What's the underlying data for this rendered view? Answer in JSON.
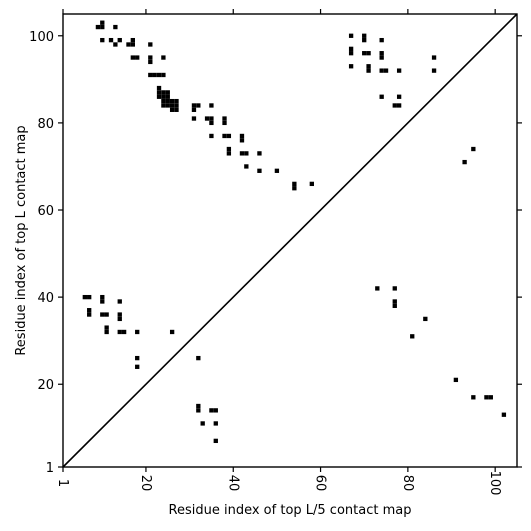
{
  "chart_data": {
    "type": "heatmap",
    "title": "",
    "xlabel": "Residue index of top L/5 contact map",
    "ylabel": "Residue index of top L contact map",
    "xlim": [
      1,
      105
    ],
    "ylim": [
      1,
      105
    ],
    "xticks": [
      "1",
      "20",
      "40",
      "60",
      "80",
      "100"
    ],
    "xtick_values": [
      1,
      20,
      40,
      60,
      80,
      100
    ],
    "yticks": [
      "1",
      "20",
      "40",
      "60",
      "80",
      "100"
    ],
    "ytick_values": [
      1,
      20,
      40,
      60,
      80,
      100
    ],
    "diagonal": true,
    "grid": false,
    "mark_color": "#000000",
    "upper_triangle_contacts": [
      [
        9,
        102
      ],
      [
        10,
        102
      ],
      [
        10,
        103
      ],
      [
        13,
        102
      ],
      [
        10,
        99
      ],
      [
        12,
        99
      ],
      [
        13,
        98
      ],
      [
        14,
        99
      ],
      [
        16,
        98
      ],
      [
        17,
        98
      ],
      [
        17,
        99
      ],
      [
        17,
        95
      ],
      [
        18,
        95
      ],
      [
        21,
        98
      ],
      [
        21,
        95
      ],
      [
        21,
        94
      ],
      [
        24,
        95
      ],
      [
        21,
        91
      ],
      [
        22,
        91
      ],
      [
        23,
        91
      ],
      [
        24,
        91
      ],
      [
        23,
        88
      ],
      [
        23,
        87
      ],
      [
        24,
        87
      ],
      [
        25,
        87
      ],
      [
        23,
        86
      ],
      [
        24,
        86
      ],
      [
        25,
        86
      ],
      [
        24,
        85
      ],
      [
        25,
        85
      ],
      [
        26,
        85
      ],
      [
        27,
        85
      ],
      [
        24,
        84
      ],
      [
        25,
        84
      ],
      [
        26,
        84
      ],
      [
        27,
        84
      ],
      [
        26,
        83
      ],
      [
        27,
        83
      ],
      [
        31,
        84
      ],
      [
        32,
        84
      ],
      [
        31,
        83
      ],
      [
        31,
        81
      ],
      [
        34,
        81
      ],
      [
        35,
        81
      ],
      [
        35,
        84
      ],
      [
        35,
        80
      ],
      [
        38,
        81
      ],
      [
        38,
        80
      ],
      [
        35,
        77
      ],
      [
        38,
        77
      ],
      [
        39,
        77
      ],
      [
        42,
        77
      ],
      [
        42,
        76
      ],
      [
        39,
        74
      ],
      [
        39,
        73
      ],
      [
        42,
        73
      ],
      [
        43,
        73
      ],
      [
        46,
        73
      ],
      [
        43,
        70
      ],
      [
        46,
        69
      ],
      [
        50,
        69
      ],
      [
        54,
        66
      ],
      [
        54,
        65
      ],
      [
        58,
        66
      ],
      [
        67,
        100
      ],
      [
        67,
        97
      ],
      [
        67,
        96
      ],
      [
        67,
        93
      ],
      [
        70,
        100
      ],
      [
        70,
        99
      ],
      [
        70,
        96
      ],
      [
        71,
        96
      ],
      [
        71,
        93
      ],
      [
        71,
        92
      ],
      [
        74,
        99
      ],
      [
        74,
        96
      ],
      [
        74,
        95
      ],
      [
        74,
        92
      ],
      [
        75,
        92
      ],
      [
        78,
        92
      ],
      [
        74,
        86
      ],
      [
        78,
        86
      ],
      [
        77,
        84
      ],
      [
        78,
        84
      ],
      [
        86,
        95
      ],
      [
        86,
        92
      ],
      [
        93,
        71
      ],
      [
        95,
        74
      ]
    ],
    "lower_triangle_contacts": [
      [
        6,
        40
      ],
      [
        7,
        40
      ],
      [
        10,
        40
      ],
      [
        10,
        39
      ],
      [
        7,
        37
      ],
      [
        7,
        36
      ],
      [
        10,
        36
      ],
      [
        11,
        36
      ],
      [
        14,
        39
      ],
      [
        14,
        36
      ],
      [
        14,
        35
      ],
      [
        11,
        33
      ],
      [
        11,
        32
      ],
      [
        14,
        32
      ],
      [
        15,
        32
      ],
      [
        18,
        32
      ],
      [
        26,
        32
      ],
      [
        18,
        26
      ],
      [
        18,
        24
      ],
      [
        32,
        26
      ],
      [
        32,
        15
      ],
      [
        32,
        14
      ],
      [
        35,
        14
      ],
      [
        36,
        14
      ],
      [
        33,
        11
      ],
      [
        36,
        11
      ],
      [
        36,
        7
      ],
      [
        73,
        42
      ],
      [
        77,
        42
      ],
      [
        77,
        39
      ],
      [
        77,
        38
      ],
      [
        84,
        35
      ],
      [
        81,
        31
      ],
      [
        91,
        21
      ],
      [
        95,
        17
      ],
      [
        98,
        17
      ],
      [
        99,
        17
      ],
      [
        102,
        13
      ]
    ]
  }
}
